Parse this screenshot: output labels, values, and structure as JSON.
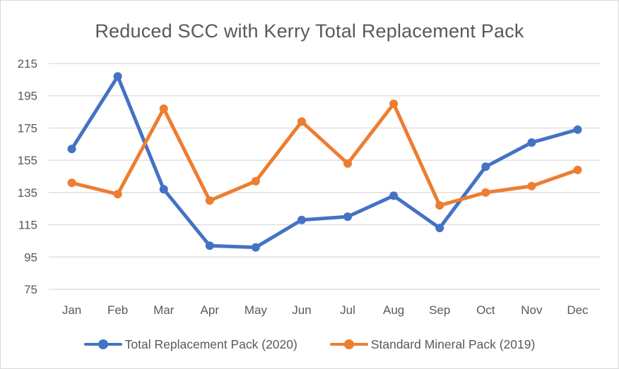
{
  "chart_data": {
    "type": "line",
    "title": "Reduced SCC with Kerry Total Replacement Pack",
    "xlabel": "",
    "ylabel": "",
    "categories": [
      "Jan",
      "Feb",
      "Mar",
      "Apr",
      "May",
      "Jun",
      "Jul",
      "Aug",
      "Sep",
      "Oct",
      "Nov",
      "Dec"
    ],
    "yticks": [
      75,
      95,
      115,
      135,
      155,
      175,
      195,
      215
    ],
    "ylim": [
      75,
      215
    ],
    "grid": true,
    "legend_position": "bottom",
    "series": [
      {
        "name": "Total Replacement Pack (2020)",
        "color": "#4472c4",
        "values": [
          162,
          207,
          137,
          102,
          101,
          118,
          120,
          133,
          113,
          151,
          166,
          174
        ]
      },
      {
        "name": "Standard Mineral Pack (2019)",
        "color": "#ed7d31",
        "values": [
          141,
          134,
          187,
          130,
          142,
          179,
          153,
          190,
          127,
          135,
          139,
          149
        ]
      }
    ]
  }
}
